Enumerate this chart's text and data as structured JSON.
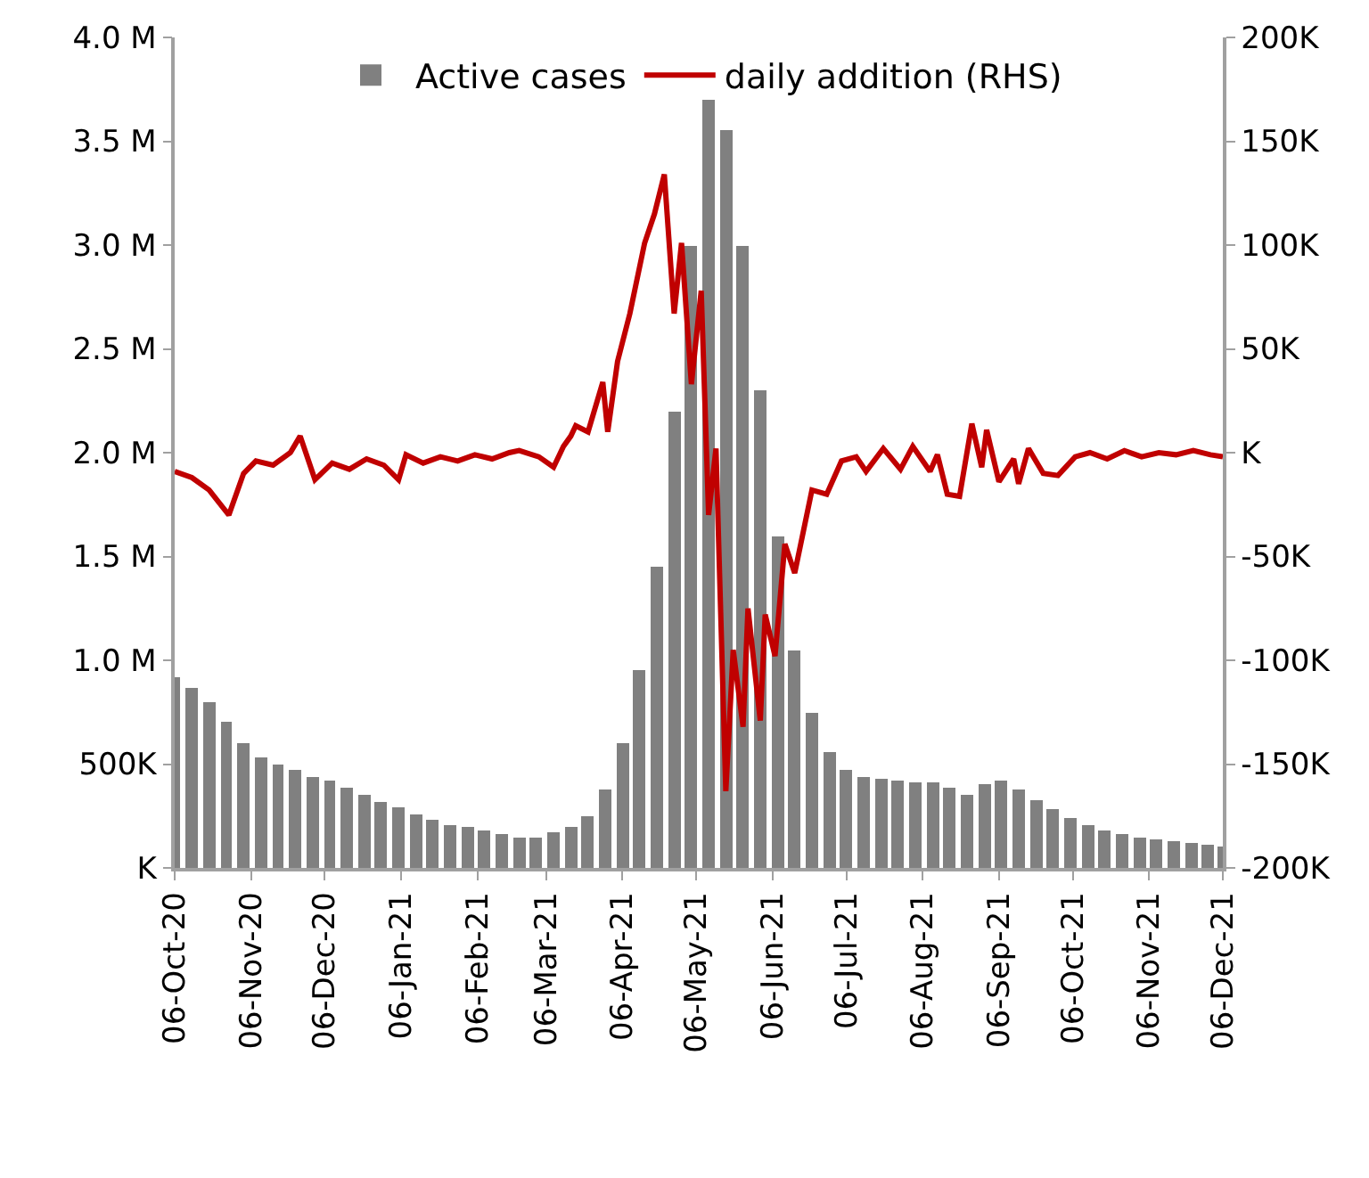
{
  "chart_data": {
    "type": "bar",
    "legend": "top",
    "xlim": [
      "2020-10-06",
      "2021-12-06"
    ],
    "xticks": [
      {
        "value": "2020-10-06",
        "label": "06-Oct-20"
      },
      {
        "value": "2020-11-06",
        "label": "06-Nov-20"
      },
      {
        "value": "2020-12-06",
        "label": "06-Dec-20"
      },
      {
        "value": "2021-01-06",
        "label": "06-Jan-21"
      },
      {
        "value": "2021-02-06",
        "label": "06-Feb-21"
      },
      {
        "value": "2021-03-06",
        "label": "06-Mar-21"
      },
      {
        "value": "2021-04-06",
        "label": "06-Apr-21"
      },
      {
        "value": "2021-05-06",
        "label": "06-May-21"
      },
      {
        "value": "2021-06-06",
        "label": "06-Jun-21"
      },
      {
        "value": "2021-07-06",
        "label": "06-Jul-21"
      },
      {
        "value": "2021-08-06",
        "label": "06-Aug-21"
      },
      {
        "value": "2021-09-06",
        "label": "06-Sep-21"
      },
      {
        "value": "2021-10-06",
        "label": "06-Oct-21"
      },
      {
        "value": "2021-11-06",
        "label": "06-Nov-21"
      },
      {
        "value": "2021-12-06",
        "label": "06-Dec-21"
      }
    ],
    "ylim": [
      0,
      4000000
    ],
    "yticks": [
      {
        "value": 0,
        "label": "K"
      },
      {
        "value": 500000,
        "label": "500K"
      },
      {
        "value": 1000000,
        "label": "1.0 M"
      },
      {
        "value": 1500000,
        "label": "1.5 M"
      },
      {
        "value": 2000000,
        "label": "2.0 M"
      },
      {
        "value": 2500000,
        "label": "2.5 M"
      },
      {
        "value": 3000000,
        "label": "3.0 M"
      },
      {
        "value": 3500000,
        "label": "3.5 M"
      },
      {
        "value": 4000000,
        "label": "4.0 M"
      }
    ],
    "y2lim": [
      -200000,
      200000
    ],
    "y2ticks": [
      {
        "value": -200000,
        "label": "-200K"
      },
      {
        "value": -150000,
        "label": "-150K"
      },
      {
        "value": -100000,
        "label": "-100K"
      },
      {
        "value": -50000,
        "label": "-50K"
      },
      {
        "value": 0,
        "label": "K"
      },
      {
        "value": 50000,
        "label": "50K"
      },
      {
        "value": 100000,
        "label": "100K"
      },
      {
        "value": 150000,
        "label": "150K"
      },
      {
        "value": 200000,
        "label": "200K"
      }
    ],
    "series": [
      {
        "name": "Active cases",
        "color": "#808080",
        "x": [
          "2020-10-06",
          "2020-10-13",
          "2020-10-20",
          "2020-10-27",
          "2020-11-03",
          "2020-11-10",
          "2020-11-17",
          "2020-11-24",
          "2020-12-01",
          "2020-12-08",
          "2020-12-15",
          "2020-12-22",
          "2020-12-29",
          "2021-01-05",
          "2021-01-12",
          "2021-01-19",
          "2021-01-26",
          "2021-02-02",
          "2021-02-09",
          "2021-02-16",
          "2021-02-23",
          "2021-03-02",
          "2021-03-09",
          "2021-03-16",
          "2021-03-23",
          "2021-03-30",
          "2021-04-06",
          "2021-04-13",
          "2021-04-20",
          "2021-04-27",
          "2021-05-04",
          "2021-05-11",
          "2021-05-18",
          "2021-05-25",
          "2021-06-01",
          "2021-06-08",
          "2021-06-15",
          "2021-06-22",
          "2021-06-29",
          "2021-07-06",
          "2021-07-13",
          "2021-07-20",
          "2021-07-27",
          "2021-08-03",
          "2021-08-10",
          "2021-08-17",
          "2021-08-24",
          "2021-08-31",
          "2021-09-07",
          "2021-09-14",
          "2021-09-21",
          "2021-09-28",
          "2021-10-05",
          "2021-10-12",
          "2021-10-19",
          "2021-10-26",
          "2021-11-02",
          "2021-11-09",
          "2021-11-16",
          "2021-11-23",
          "2021-11-30",
          "2021-12-06"
        ],
        "values": [
          920000,
          870000,
          800000,
          700000,
          600000,
          530000,
          500000,
          470000,
          440000,
          420000,
          390000,
          350000,
          320000,
          290000,
          260000,
          230000,
          210000,
          200000,
          180000,
          160000,
          150000,
          150000,
          170000,
          200000,
          250000,
          380000,
          600000,
          950000,
          1450000,
          2200000,
          3000000,
          3700000,
          3550000,
          3000000,
          2300000,
          1600000,
          1050000,
          750000,
          560000,
          470000,
          440000,
          430000,
          420000,
          410000,
          410000,
          390000,
          350000,
          400000,
          420000,
          380000,
          330000,
          280000,
          240000,
          210000,
          180000,
          160000,
          150000,
          140000,
          130000,
          120000,
          110000,
          100000
        ]
      },
      {
        "name": "daily addition (RHS)",
        "type": "line",
        "axis": "y2",
        "color": "#c00000",
        "x": [
          "2020-10-06",
          "2020-10-13",
          "2020-10-20",
          "2020-10-28",
          "2020-11-03",
          "2020-11-08",
          "2020-11-15",
          "2020-11-22",
          "2020-11-26",
          "2020-12-02",
          "2020-12-09",
          "2020-12-16",
          "2020-12-23",
          "2020-12-30",
          "2021-01-05",
          "2021-01-08",
          "2021-01-15",
          "2021-01-22",
          "2021-01-29",
          "2021-02-05",
          "2021-02-12",
          "2021-02-19",
          "2021-02-23",
          "2021-03-03",
          "2021-03-09",
          "2021-03-13",
          "2021-03-16",
          "2021-03-18",
          "2021-03-23",
          "2021-03-29",
          "2021-03-31",
          "2021-04-04",
          "2021-04-09",
          "2021-04-15",
          "2021-04-19",
          "2021-04-23",
          "2021-04-27",
          "2021-04-30",
          "2021-05-04",
          "2021-05-08",
          "2021-05-11",
          "2021-05-14",
          "2021-05-18",
          "2021-05-21",
          "2021-05-25",
          "2021-05-27",
          "2021-06-01",
          "2021-06-03",
          "2021-06-07",
          "2021-06-11",
          "2021-06-15",
          "2021-06-22",
          "2021-06-28",
          "2021-07-04",
          "2021-07-10",
          "2021-07-14",
          "2021-07-21",
          "2021-07-28",
          "2021-08-02",
          "2021-08-09",
          "2021-08-12",
          "2021-08-16",
          "2021-08-21",
          "2021-08-26",
          "2021-08-30",
          "2021-09-01",
          "2021-09-06",
          "2021-09-12",
          "2021-09-14",
          "2021-09-18",
          "2021-09-24",
          "2021-09-30",
          "2021-10-07",
          "2021-10-13",
          "2021-10-20",
          "2021-10-27",
          "2021-11-03",
          "2021-11-10",
          "2021-11-17",
          "2021-11-24",
          "2021-12-01",
          "2021-12-06"
        ],
        "values": [
          -9000,
          -12000,
          -18000,
          -30000,
          -10000,
          -4000,
          -6000,
          0,
          8000,
          -13000,
          -5000,
          -8000,
          -3000,
          -6000,
          -13000,
          -1000,
          -5000,
          -2000,
          -4000,
          -1000,
          -3000,
          0,
          1000,
          -2000,
          -7000,
          3000,
          8000,
          13000,
          10000,
          34000,
          10000,
          44000,
          67000,
          101000,
          115000,
          134000,
          67000,
          101000,
          33000,
          78000,
          -30000,
          2000,
          -163000,
          -95000,
          -132000,
          -75000,
          -129000,
          -78000,
          -98000,
          -44000,
          -58000,
          -18000,
          -20000,
          -4000,
          -2000,
          -9000,
          2000,
          -8000,
          3000,
          -9000,
          -1000,
          -20000,
          -21000,
          14000,
          -7000,
          11000,
          -14000,
          -3000,
          -15000,
          2000,
          -10000,
          -11000,
          -2000,
          0,
          -3000,
          1000,
          -2000,
          0,
          -1000,
          1000,
          -1000,
          -2000
        ]
      }
    ]
  }
}
